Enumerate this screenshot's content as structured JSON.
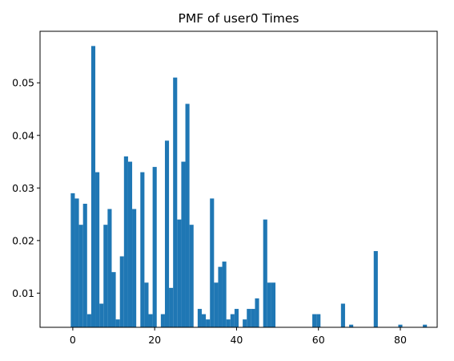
{
  "chart_data": {
    "type": "bar",
    "title": "PMF of user0 Times",
    "xlabel": "",
    "ylabel": "",
    "xlim": [
      -8,
      89
    ],
    "ylim": [
      0.0035,
      0.0598
    ],
    "bar_width": 1.0,
    "bar_color": "#1f77b4",
    "grid": false,
    "x_ticks": [
      0,
      20,
      40,
      60,
      80
    ],
    "x_tick_labels": [
      "0",
      "20",
      "40",
      "60",
      "80"
    ],
    "y_ticks": [
      0.01,
      0.02,
      0.03,
      0.04,
      0.05
    ],
    "y_tick_labels": [
      "0.01",
      "0.02",
      "0.03",
      "0.04",
      "0.05"
    ],
    "x": [
      0,
      1,
      2,
      3,
      4,
      5,
      6,
      7,
      8,
      9,
      10,
      11,
      12,
      13,
      14,
      15,
      16,
      17,
      18,
      19,
      20,
      21,
      22,
      23,
      24,
      25,
      26,
      27,
      28,
      29,
      30,
      31,
      32,
      33,
      34,
      35,
      36,
      37,
      38,
      39,
      40,
      41,
      42,
      43,
      44,
      45,
      46,
      47,
      48,
      49,
      59,
      60,
      66,
      68,
      74,
      80,
      86
    ],
    "values": [
      0.029,
      0.028,
      0.023,
      0.027,
      0.006,
      0.057,
      0.033,
      0.008,
      0.023,
      0.026,
      0.014,
      0.005,
      0.017,
      0.036,
      0.035,
      0.026,
      0.0035,
      0.033,
      0.012,
      0.006,
      0.034,
      0.0035,
      0.006,
      0.039,
      0.011,
      0.051,
      0.024,
      0.035,
      0.046,
      0.023,
      0.0035,
      0.007,
      0.006,
      0.005,
      0.028,
      0.012,
      0.015,
      0.016,
      0.005,
      0.006,
      0.007,
      0.0035,
      0.005,
      0.007,
      0.007,
      0.009,
      0.0035,
      0.024,
      0.012,
      0.012,
      0.006,
      0.006,
      0.008,
      0.004,
      0.018,
      0.004,
      0.004
    ]
  }
}
